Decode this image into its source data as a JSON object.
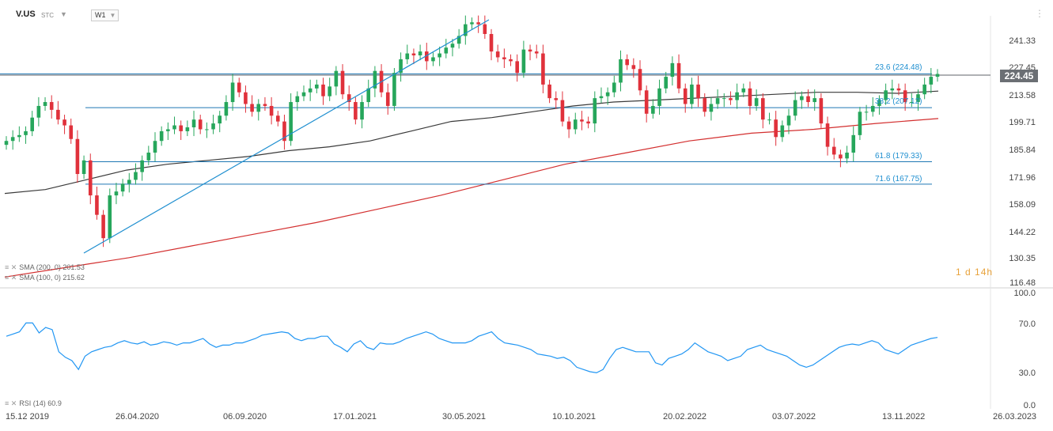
{
  "header": {
    "symbol": "V.US",
    "type": "STC",
    "timeframe": "W1"
  },
  "indicators": {
    "sma200_label": "SMA (200, 0) 201.53",
    "sma100_label": "SMA (100, 0) 215.62",
    "rsi_label": "RSI (14) 60.9"
  },
  "countdown": "1 d 14h",
  "chart_data": {
    "type": "candlestick",
    "price_axis_ticks": [
      "241.33",
      "227.45",
      "213.58",
      "199.71",
      "185.84",
      "171.96",
      "158.09",
      "144.22",
      "130.35",
      "116.48"
    ],
    "price_range": [
      116.48,
      248.0
    ],
    "last_price": "224.45",
    "x_ticks": [
      "15.12 2019",
      "26.04.2020",
      "06.09.2020",
      "17.01.2021",
      "30.05.2021",
      "10.10.2021",
      "20.02.2022",
      "03.07.2022",
      "13.11.2022",
      "26.03.2023"
    ],
    "fib_levels": [
      {
        "label": "23.6 (224.48)",
        "value": 224.48
      },
      {
        "label": "38.2 (207.12)",
        "value": 207.12
      },
      {
        "label": "61.8 (179.33)",
        "value": 179.33
      },
      {
        "label": "71.6 (167.75)",
        "value": 167.75
      }
    ],
    "closes": [
      190,
      192,
      193,
      195,
      202,
      208,
      210,
      206,
      201,
      198,
      191,
      173,
      180,
      162,
      152,
      140,
      162,
      164,
      168,
      170,
      174,
      180,
      184,
      190,
      195,
      196,
      198,
      195,
      197,
      201,
      196,
      196,
      199,
      203,
      210,
      220,
      215,
      209,
      205,
      209,
      208,
      203,
      200,
      190,
      210,
      213,
      215,
      217,
      219,
      213,
      218,
      226,
      214,
      210,
      201,
      210,
      217,
      226,
      215,
      208,
      225,
      232,
      235,
      234,
      236,
      231,
      233,
      235,
      238,
      240,
      244,
      250,
      251,
      250,
      245,
      236,
      233,
      232,
      231,
      225,
      237,
      236,
      235,
      219,
      212,
      211,
      200,
      196,
      201,
      200,
      199,
      212,
      213,
      215,
      220,
      232,
      229,
      227,
      216,
      204,
      208,
      217,
      223,
      230,
      217,
      209,
      219,
      212,
      205,
      209,
      212,
      212,
      211,
      215,
      217,
      208,
      212,
      201,
      201,
      192,
      198,
      203,
      211,
      213,
      210,
      212,
      199,
      187,
      183,
      181,
      184,
      193,
      205,
      205,
      208,
      211,
      216,
      217,
      216,
      210,
      210,
      214,
      219,
      223,
      224.45
    ],
    "sma100_values": [
      163,
      165,
      170,
      175,
      178,
      180,
      182,
      185,
      187,
      190,
      195,
      200,
      202,
      205,
      208,
      210,
      211,
      212,
      213,
      214,
      215,
      215,
      214.5,
      215.62
    ],
    "sma200_values": [
      120,
      125,
      130,
      136,
      142,
      148,
      155,
      162,
      170,
      178,
      184,
      190,
      194,
      196,
      199,
      201.53
    ],
    "rsi": {
      "ticks": [
        "100.0",
        "70.0",
        "30.0",
        "0.0"
      ],
      "range": [
        0,
        100
      ],
      "values": [
        62,
        64,
        66,
        74,
        74,
        65,
        70,
        68,
        48,
        43,
        40,
        32,
        44,
        48,
        50,
        52,
        53,
        56,
        58,
        56,
        55,
        57,
        54,
        55,
        57,
        56,
        54,
        56,
        56,
        58,
        60,
        55,
        52,
        54,
        54,
        56,
        56,
        58,
        60,
        63,
        64,
        65,
        66,
        65,
        60,
        58,
        60,
        60,
        62,
        62,
        55,
        52,
        48,
        55,
        58,
        52,
        50,
        56,
        55,
        55,
        57,
        60,
        62,
        64,
        66,
        64,
        60,
        58,
        56,
        56,
        56,
        58,
        62,
        64,
        66,
        60,
        56,
        55,
        54,
        52,
        50,
        46,
        45,
        44,
        42,
        43,
        40,
        34,
        32,
        30,
        29,
        32,
        42,
        50,
        52,
        50,
        48,
        48,
        48,
        38,
        36,
        42,
        44,
        46,
        50,
        56,
        52,
        48,
        46,
        44,
        40,
        42,
        44,
        50,
        52,
        54,
        50,
        48,
        46,
        44,
        40,
        36,
        34,
        36,
        40,
        44,
        48,
        52,
        54,
        55,
        54,
        56,
        58,
        56,
        50,
        48,
        46,
        50,
        54,
        56,
        58,
        60,
        60.9
      ]
    }
  }
}
